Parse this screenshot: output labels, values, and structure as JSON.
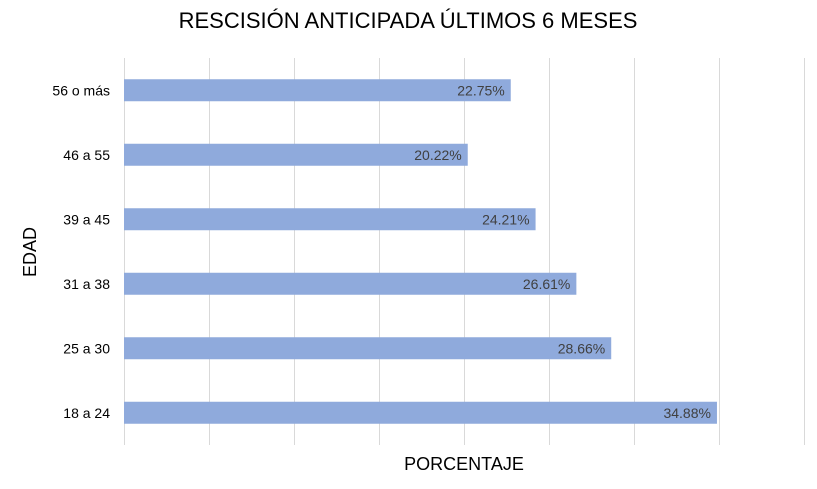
{
  "chart_data": {
    "type": "bar",
    "orientation": "horizontal",
    "title": "RESCISIÓN ANTICIPADA ÚLTIMOS 6 MESES",
    "xlabel": "PORCENTAJE",
    "ylabel": "EDAD",
    "categories": [
      "56 o más",
      "46 a 55",
      "39 a 45",
      "31 a 38",
      "25 a 30",
      "18 a 24"
    ],
    "values": [
      22.75,
      20.22,
      24.21,
      26.61,
      28.66,
      34.88
    ],
    "data_labels": [
      "22.75%",
      "20.22%",
      "24.21%",
      "26.61%",
      "28.66%",
      "34.88%"
    ],
    "xlim": [
      0,
      40
    ],
    "x_grid_step": 5,
    "grid": true,
    "legend": "none",
    "bar_color": "#8faadc"
  }
}
